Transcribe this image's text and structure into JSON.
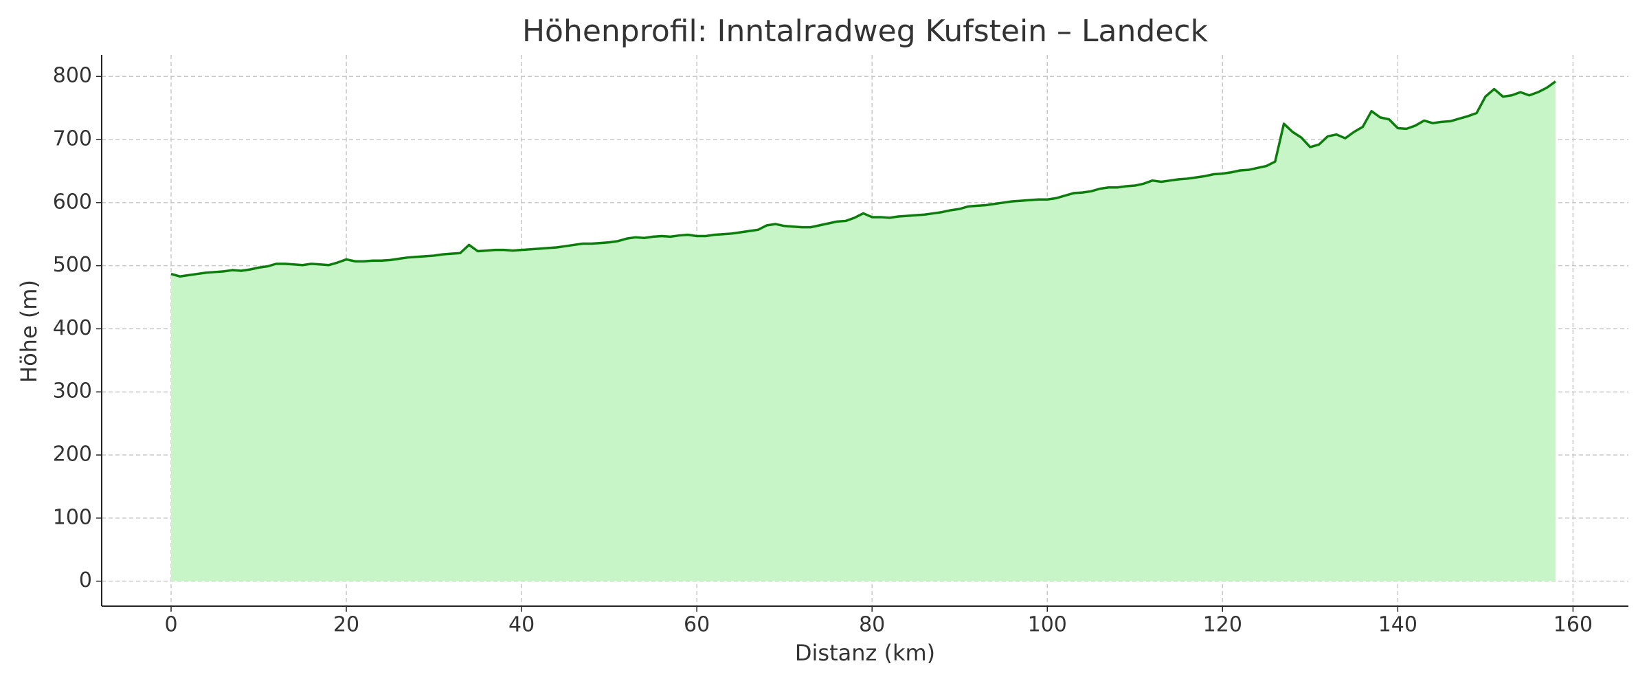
{
  "chart_data": {
    "type": "area",
    "title": "Höhenprofil: Inntalradweg Kufstein – Landeck",
    "xlabel": "Distanz (km)",
    "ylabel": "Höhe (m)",
    "x": [
      0,
      1,
      2,
      3,
      4,
      5,
      6,
      7,
      8,
      9,
      10,
      11,
      12,
      13,
      14,
      15,
      16,
      17,
      18,
      19,
      20,
      21,
      22,
      23,
      24,
      25,
      26,
      27,
      28,
      29,
      30,
      31,
      32,
      33,
      34,
      35,
      36,
      37,
      38,
      39,
      40,
      41,
      42,
      43,
      44,
      45,
      46,
      47,
      48,
      49,
      50,
      51,
      52,
      53,
      54,
      55,
      56,
      57,
      58,
      59,
      60,
      61,
      62,
      63,
      64,
      65,
      66,
      67,
      68,
      69,
      70,
      71,
      72,
      73,
      74,
      75,
      76,
      77,
      78,
      79,
      80,
      81,
      82,
      83,
      84,
      85,
      86,
      87,
      88,
      89,
      90,
      91,
      92,
      93,
      94,
      95,
      96,
      97,
      98,
      99,
      100,
      101,
      102,
      103,
      104,
      105,
      106,
      107,
      108,
      109,
      110,
      111,
      112,
      113,
      114,
      115,
      116,
      117,
      118,
      119,
      120,
      121,
      122,
      123,
      124,
      125,
      126,
      127,
      128,
      129,
      130,
      131,
      132,
      133,
      134,
      135,
      136,
      137,
      138,
      139,
      140,
      141,
      142,
      143,
      144,
      145,
      146,
      147,
      148,
      149,
      150,
      151,
      152,
      153,
      154,
      155,
      156,
      157,
      158
    ],
    "series": [
      {
        "name": "Höhe",
        "color": "#0a7d0a",
        "fill_color": "#c8f5c8",
        "values": [
          487,
          483,
          485,
          487,
          489,
          490,
          491,
          493,
          492,
          494,
          497,
          499,
          503,
          503,
          502,
          501,
          503,
          502,
          501,
          505,
          510,
          507,
          507,
          508,
          508,
          509,
          511,
          513,
          514,
          515,
          516,
          518,
          519,
          520,
          533,
          523,
          524,
          525,
          525,
          524,
          525,
          526,
          527,
          528,
          529,
          531,
          533,
          535,
          535,
          536,
          537,
          539,
          543,
          545,
          544,
          546,
          547,
          546,
          548,
          549,
          547,
          547,
          549,
          550,
          551,
          553,
          555,
          557,
          564,
          566,
          563,
          562,
          561,
          561,
          564,
          567,
          570,
          571,
          576,
          583,
          577,
          577,
          576,
          578,
          579,
          580,
          581,
          583,
          585,
          588,
          590,
          594,
          595,
          596,
          598,
          600,
          602,
          603,
          604,
          605,
          605,
          607,
          611,
          615,
          616,
          618,
          622,
          624,
          624,
          626,
          627,
          630,
          635,
          633,
          635,
          637,
          638,
          640,
          642,
          645,
          646,
          648,
          651,
          652,
          655,
          658,
          665,
          725,
          712,
          703,
          688,
          692,
          705,
          708,
          702,
          712,
          720,
          745,
          735,
          732,
          718,
          717,
          722,
          730,
          726,
          728,
          729,
          733,
          737,
          742,
          768,
          780,
          768,
          770,
          775,
          770,
          775,
          782,
          792
        ]
      }
    ],
    "xlim": [
      -7.92,
      166.32
    ],
    "ylim": [
      -39.6,
      834
    ],
    "xticks": [
      0,
      20,
      40,
      60,
      80,
      100,
      120,
      140,
      160
    ],
    "yticks": [
      0,
      100,
      200,
      300,
      400,
      500,
      600,
      700,
      800
    ],
    "grid": true
  }
}
